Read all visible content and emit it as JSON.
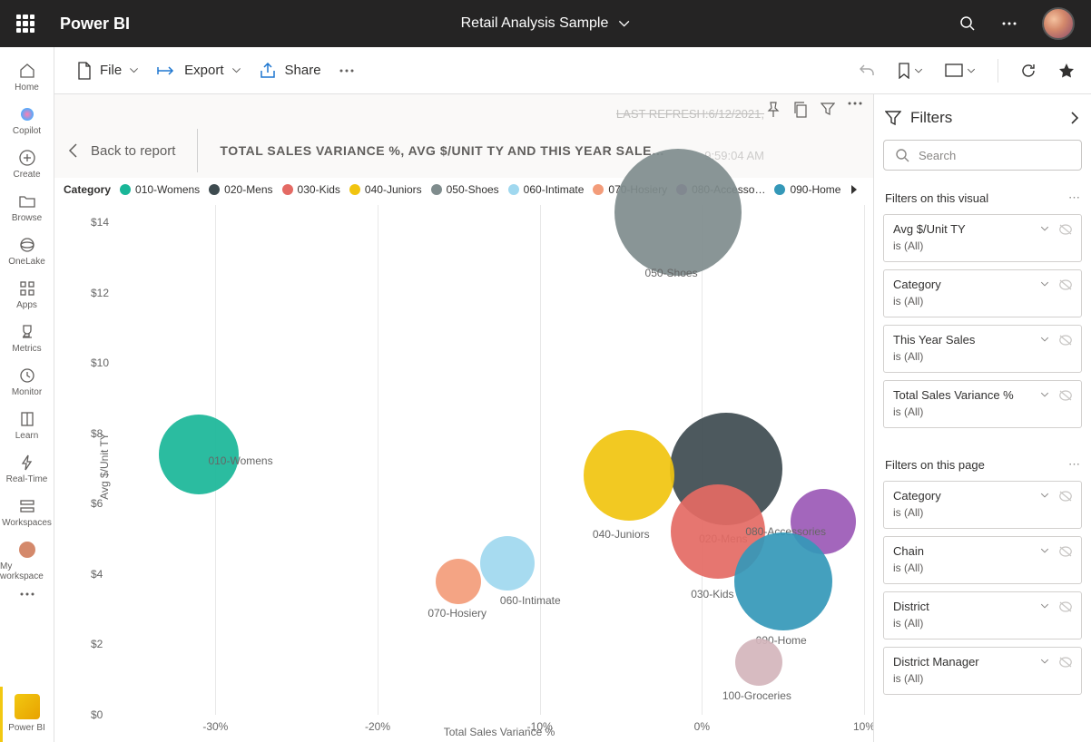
{
  "app": {
    "name": "Power BI",
    "report_title": "Retail Analysis Sample"
  },
  "leftrail": [
    {
      "label": "Home",
      "icon": "home"
    },
    {
      "label": "Copilot",
      "icon": "copilot"
    },
    {
      "label": "Create",
      "icon": "plus"
    },
    {
      "label": "Browse",
      "icon": "folder"
    },
    {
      "label": "OneLake",
      "icon": "onelake"
    },
    {
      "label": "Apps",
      "icon": "apps"
    },
    {
      "label": "Metrics",
      "icon": "trophy"
    },
    {
      "label": "Monitor",
      "icon": "monitor"
    },
    {
      "label": "Learn",
      "icon": "book"
    },
    {
      "label": "Real-Time",
      "icon": "bolt"
    },
    {
      "label": "Workspaces",
      "icon": "workspaces"
    },
    {
      "label": "My workspace",
      "icon": "avatar"
    }
  ],
  "leftrail_bottom_label": "Power BI",
  "commands": {
    "file": "File",
    "export": "Export",
    "share": "Share"
  },
  "breadcrumb": {
    "back": "Back to report",
    "title": "TOTAL SALES VARIANCE %, AVG $/UNIT TY AND THIS YEAR SALE…"
  },
  "refresh": {
    "text": "LAST REFRESH:6/12/2021,",
    "time": "9:59:04 AM"
  },
  "chart": {
    "type": "scatter",
    "x_label": "Total Sales Variance %",
    "y_label": "Avg $/Unit TY",
    "xlim": [
      -35,
      10
    ],
    "ylim": [
      0,
      14.5
    ],
    "xticks": [
      {
        "v": -30,
        "t": "-30%"
      },
      {
        "v": -20,
        "t": "-20%"
      },
      {
        "v": -10,
        "t": "-10%"
      },
      {
        "v": 0,
        "t": "0%"
      },
      {
        "v": 10,
        "t": "10%"
      }
    ],
    "yticks": [
      {
        "v": 0,
        "t": "$0"
      },
      {
        "v": 2,
        "t": "$2"
      },
      {
        "v": 4,
        "t": "$4"
      },
      {
        "v": 6,
        "t": "$6"
      },
      {
        "v": 8,
        "t": "$8"
      },
      {
        "v": 10,
        "t": "$10"
      },
      {
        "v": 12,
        "t": "$12"
      },
      {
        "v": 14,
        "t": "$14"
      }
    ],
    "legend_title": "Category",
    "series": [
      {
        "name": "010-Womens",
        "color": "#19b698",
        "x": -31,
        "y": 7.4,
        "r": 44,
        "lx": 10,
        "ly": 0
      },
      {
        "name": "020-Mens",
        "color": "#3e4b50",
        "x": 1.5,
        "y": 7.0,
        "r": 62,
        "lx": -30,
        "ly": 70
      },
      {
        "name": "030-Kids",
        "color": "#e46a64",
        "x": 1.0,
        "y": 5.2,
        "r": 52,
        "lx": -30,
        "ly": 62
      },
      {
        "name": "040-Juniors",
        "color": "#f1c40f",
        "x": -4.5,
        "y": 6.8,
        "r": 50,
        "lx": -40,
        "ly": 58
      },
      {
        "name": "050-Shoes",
        "color": "#7f8c8d",
        "x": -1.5,
        "y": 14.3,
        "r": 70,
        "lx": -36,
        "ly": 60
      },
      {
        "name": "060-Intimate",
        "color": "#a0d8ef",
        "x": -12,
        "y": 4.3,
        "r": 30,
        "lx": -8,
        "ly": 34
      },
      {
        "name": "070-Hosiery",
        "color": "#f39c7a",
        "x": -15,
        "y": 3.8,
        "r": 25,
        "lx": -34,
        "ly": 28
      },
      {
        "name": "080-Accesso…",
        "full": "080-Accessories",
        "color": "#9b59b6",
        "x": 7.5,
        "y": 5.5,
        "r": 36,
        "lx": -86,
        "ly": 4
      },
      {
        "name": "090-Home",
        "color": "#3498b8",
        "x": 5.0,
        "y": 3.8,
        "r": 54,
        "lx": -30,
        "ly": 58
      },
      {
        "name": "100-Groceries",
        "color": "#d4b5bc",
        "x": 3.5,
        "y": 1.5,
        "r": 26,
        "lx": -40,
        "ly": 30,
        "legend": false
      }
    ],
    "background": "#ffffff",
    "grid_color": "#e8e8e8"
  },
  "filters": {
    "title": "Filters",
    "search_placeholder": "Search",
    "sections": [
      {
        "title": "Filters on this visual",
        "cards": [
          {
            "name": "Avg $/Unit TY",
            "state": "is (All)"
          },
          {
            "name": "Category",
            "state": "is (All)"
          },
          {
            "name": "This Year Sales",
            "state": "is (All)"
          },
          {
            "name": "Total Sales Variance %",
            "state": "is (All)"
          }
        ]
      },
      {
        "title": "Filters on this page",
        "cards": [
          {
            "name": "Category",
            "state": "is (All)"
          },
          {
            "name": "Chain",
            "state": "is (All)"
          },
          {
            "name": "District",
            "state": "is (All)"
          },
          {
            "name": "District Manager",
            "state": "is (All)"
          }
        ]
      }
    ]
  }
}
